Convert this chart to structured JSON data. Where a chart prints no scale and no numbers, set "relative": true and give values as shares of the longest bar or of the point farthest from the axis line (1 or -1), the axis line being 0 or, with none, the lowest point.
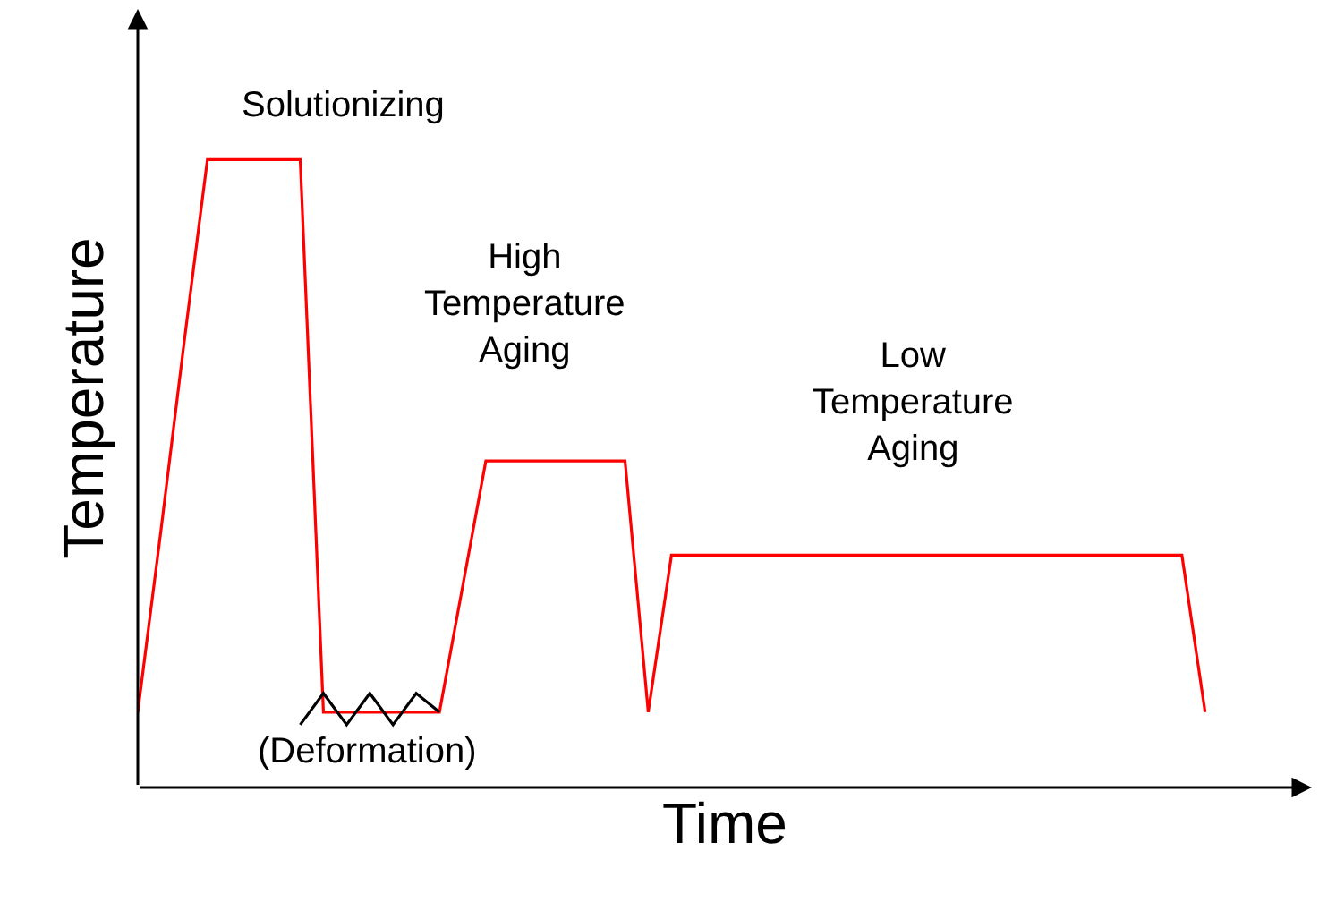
{
  "chart_data": {
    "type": "line",
    "relative": true,
    "xlabel": "Time",
    "ylabel": "Temperature",
    "marker": "none",
    "line_style": "solid",
    "categories": [
      null,
      null,
      null,
      null,
      null,
      null,
      null,
      null,
      null,
      null,
      null,
      null,
      null,
      null,
      null,
      null,
      null,
      null,
      null,
      null,
      null,
      null,
      null,
      null,
      null,
      null,
      null,
      null,
      null,
      null,
      null,
      null,
      null,
      null,
      null,
      null,
      null,
      null,
      null,
      null,
      null,
      null,
      null,
      null,
      null,
      null,
      null,
      null,
      null,
      null,
      null
    ],
    "series": [
      {
        "color": "#ff0000",
        "values": [
          0.12,
          0.41,
          0.71,
          1,
          1,
          1,
          1,
          1,
          0.12,
          0.12,
          0.12,
          0.12,
          0.12,
          0.12,
          0.32,
          0.52,
          0.52,
          0.52,
          0.52,
          0.52,
          0.52,
          0.52,
          0.12,
          0.37,
          0.37,
          0.37,
          0.37,
          0.37,
          0.37,
          0.37,
          0.37,
          0.37,
          0.37,
          0.37,
          0.37,
          0.37,
          0.37,
          0.37,
          0.37,
          0.37,
          0.37,
          0.37,
          0.37,
          0.37,
          0.37,
          0.37,
          0.12,
          null,
          null,
          null,
          null
        ]
      },
      {
        "color": "#000000",
        "values": [
          null,
          null,
          null,
          null,
          null,
          null,
          null,
          0.1,
          0.15,
          0.1,
          0.15,
          0.1,
          0.15,
          0.12,
          null,
          null,
          null,
          null,
          null,
          null,
          null,
          null,
          null,
          null,
          null,
          null,
          null,
          null,
          null,
          null,
          null,
          null,
          null,
          null,
          null,
          null,
          null,
          null,
          null,
          null,
          null,
          null,
          null,
          null,
          null,
          null,
          null,
          null,
          null,
          null,
          null
        ]
      }
    ],
    "annotations": [
      "Solutionizing",
      "High\nTemperature\nAging",
      "Low\nTemperature\nAging",
      "(Deformation)"
    ]
  }
}
